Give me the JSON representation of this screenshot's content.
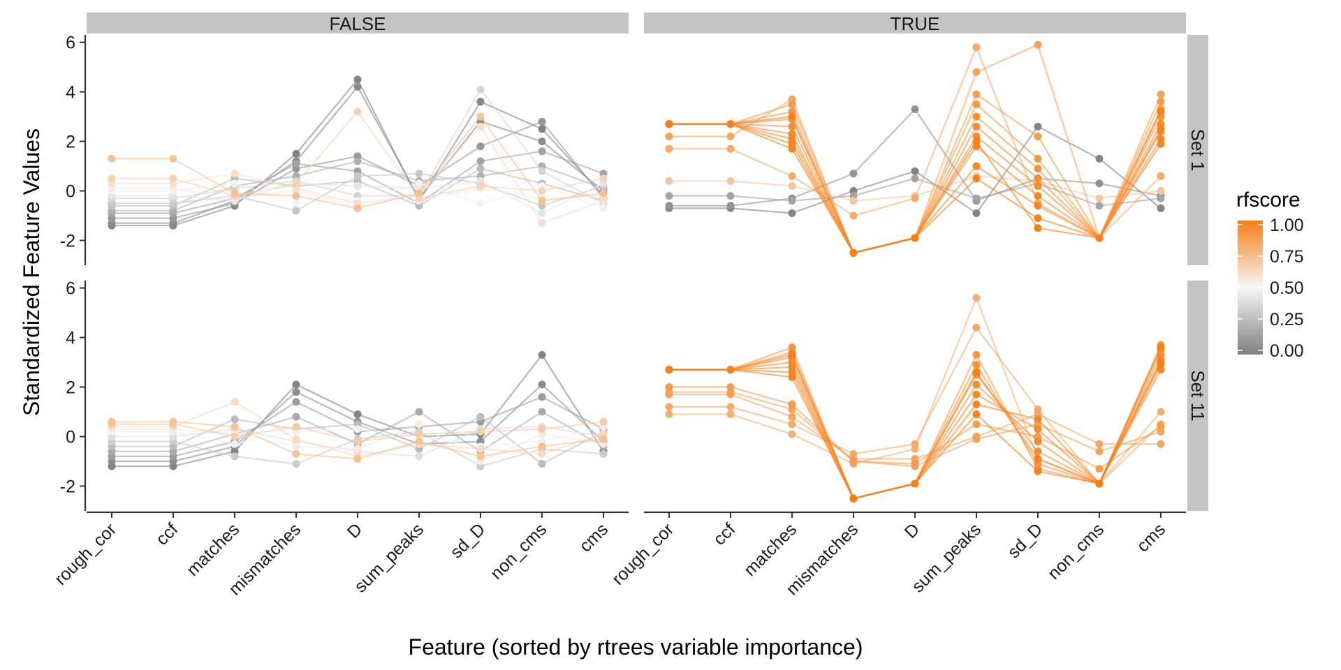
{
  "chart_data": {
    "type": "line",
    "y_axis_label": "Standardized Feature Values",
    "x_axis_label": "Feature (sorted by rtrees variable importance)",
    "x_categories": [
      "rough_cor",
      "ccf",
      "matches",
      "mismatches",
      "D",
      "sum_peaks",
      "sd_D",
      "non_cms",
      "cms"
    ],
    "y_ticks": [
      6,
      4,
      2,
      0,
      -2
    ],
    "y_tick_labels": [
      "6",
      "4",
      "2",
      "0",
      "-2"
    ],
    "ylim": [
      -3,
      6.3
    ],
    "column_facets": [
      "FALSE",
      "TRUE"
    ],
    "row_facets": [
      "Set 1",
      "Set 11"
    ],
    "legend": {
      "title": "rfscore",
      "ticks": [
        1.0,
        0.75,
        0.5,
        0.25,
        0.0
      ],
      "tick_labels": [
        "1.00",
        "0.75",
        "0.50",
        "0.25",
        "0.00"
      ],
      "color_low": "#7f7f7f",
      "color_mid": "#f7f7f7",
      "color_high": "#f57f17"
    },
    "panels": [
      {
        "column": "FALSE",
        "row": "Set 1",
        "series": [
          {
            "rfscore": 0.02,
            "values": [
              -1.4,
              -1.4,
              -0.6,
              1.5,
              4.5,
              -0.4,
              3.6,
              2.5,
              -0.2
            ]
          },
          {
            "rfscore": 0.05,
            "values": [
              -1.3,
              -1.3,
              -0.4,
              1.2,
              4.2,
              -0.3,
              2.8,
              2.0,
              0.0
            ]
          },
          {
            "rfscore": 0.1,
            "values": [
              -1.1,
              -1.1,
              -0.5,
              0.9,
              1.4,
              0.2,
              1.8,
              2.8,
              -0.3
            ]
          },
          {
            "rfscore": 0.15,
            "values": [
              -0.9,
              -0.9,
              -0.3,
              1.1,
              0.8,
              -0.5,
              1.2,
              1.6,
              0.7
            ]
          },
          {
            "rfscore": 0.2,
            "values": [
              -0.8,
              -0.8,
              0.2,
              0.6,
              1.2,
              0.4,
              0.6,
              1.0,
              0.1
            ]
          },
          {
            "rfscore": 0.25,
            "values": [
              -0.6,
              -0.6,
              0.5,
              0.2,
              0.4,
              -0.6,
              0.9,
              0.3,
              -0.4
            ]
          },
          {
            "rfscore": 0.3,
            "values": [
              -0.5,
              -0.5,
              -0.2,
              -0.8,
              0.6,
              0.7,
              0.3,
              -0.6,
              0.2
            ]
          },
          {
            "rfscore": 0.35,
            "values": [
              -0.3,
              -0.3,
              0.1,
              0.4,
              -0.2,
              -0.2,
              4.1,
              0.8,
              -0.5
            ]
          },
          {
            "rfscore": 0.42,
            "values": [
              -0.2,
              -0.2,
              -0.4,
              0.3,
              0.2,
              0.1,
              0.4,
              -0.9,
              0.3
            ]
          },
          {
            "rfscore": 0.48,
            "values": [
              0.0,
              0.0,
              0.3,
              -0.5,
              -0.4,
              0.3,
              -0.5,
              0.2,
              -0.7
            ]
          },
          {
            "rfscore": 0.55,
            "values": [
              0.1,
              0.1,
              -0.3,
              0.0,
              -0.6,
              -0.4,
              0.1,
              -0.3,
              -0.2
            ]
          },
          {
            "rfscore": 0.6,
            "values": [
              0.3,
              0.3,
              0.7,
              0.1,
              -0.5,
              -0.2,
              2.6,
              -1.3,
              -0.4
            ]
          },
          {
            "rfscore": 0.65,
            "values": [
              0.5,
              0.5,
              -0.2,
              0.3,
              3.2,
              -0.3,
              0.2,
              0.0,
              0.5
            ]
          },
          {
            "rfscore": 0.72,
            "values": [
              1.3,
              1.3,
              -0.1,
              -0.2,
              -0.7,
              -0.1,
              3.0,
              -0.4,
              -0.1
            ]
          }
        ]
      },
      {
        "column": "TRUE",
        "row": "Set 1",
        "series": [
          {
            "rfscore": 0.02,
            "values": [
              -0.7,
              -0.7,
              -0.9,
              0.0,
              0.8,
              -0.9,
              2.6,
              1.3,
              -0.7
            ]
          },
          {
            "rfscore": 0.08,
            "values": [
              -0.6,
              -0.6,
              -0.3,
              0.7,
              3.3,
              -0.4,
              0.5,
              0.3,
              -0.2
            ]
          },
          {
            "rfscore": 0.15,
            "values": [
              -0.2,
              -0.2,
              -0.4,
              -0.2,
              0.5,
              -0.3,
              0.3,
              -0.6,
              -0.3
            ]
          },
          {
            "rfscore": 0.7,
            "values": [
              0.4,
              0.4,
              0.2,
              -0.4,
              -0.2,
              0.6,
              0.4,
              -0.3,
              0.0
            ]
          },
          {
            "rfscore": 0.82,
            "values": [
              1.7,
              1.7,
              0.6,
              -1.0,
              -0.3,
              5.8,
              -0.5,
              -1.9,
              0.6
            ]
          },
          {
            "rfscore": 0.85,
            "values": [
              2.2,
              2.2,
              3.7,
              -2.5,
              -1.9,
              4.8,
              5.9,
              -1.9,
              3.9
            ]
          },
          {
            "rfscore": 0.88,
            "values": [
              2.7,
              2.7,
              3.5,
              -2.5,
              -1.9,
              3.9,
              2.2,
              -1.9,
              3.6
            ]
          },
          {
            "rfscore": 0.9,
            "values": [
              2.7,
              2.7,
              3.2,
              -2.5,
              -1.9,
              3.5,
              1.3,
              -1.9,
              3.3
            ]
          },
          {
            "rfscore": 0.92,
            "values": [
              2.7,
              2.7,
              2.9,
              -2.5,
              -1.9,
              3.0,
              0.9,
              -1.9,
              3.0
            ]
          },
          {
            "rfscore": 0.94,
            "values": [
              2.7,
              2.7,
              2.6,
              -2.5,
              -1.9,
              2.6,
              0.5,
              -1.9,
              2.7
            ]
          },
          {
            "rfscore": 0.95,
            "values": [
              2.7,
              2.7,
              2.3,
              -2.5,
              -1.9,
              2.2,
              0.2,
              -1.9,
              2.4
            ]
          },
          {
            "rfscore": 0.96,
            "values": [
              2.7,
              2.7,
              2.1,
              -2.5,
              -1.9,
              1.8,
              -0.2,
              -1.9,
              2.1
            ]
          },
          {
            "rfscore": 0.97,
            "values": [
              2.7,
              2.7,
              1.9,
              -2.5,
              -1.9,
              1.0,
              -0.6,
              -1.9,
              1.9
            ]
          },
          {
            "rfscore": 0.98,
            "values": [
              2.7,
              2.7,
              1.7,
              -2.5,
              -1.9,
              0.5,
              -1.1,
              -1.9,
              2.5
            ]
          },
          {
            "rfscore": 0.99,
            "values": [
              2.7,
              2.7,
              3.0,
              -2.5,
              -1.9,
              2.0,
              -1.5,
              -1.9,
              3.2
            ]
          }
        ]
      },
      {
        "column": "FALSE",
        "row": "Set 11",
        "series": [
          {
            "rfscore": 0.02,
            "values": [
              -1.2,
              -1.2,
              -0.6,
              2.1,
              0.9,
              0.0,
              0.1,
              3.3,
              -0.6
            ]
          },
          {
            "rfscore": 0.06,
            "values": [
              -1.0,
              -1.0,
              -0.4,
              1.8,
              0.6,
              -0.3,
              -0.2,
              2.1,
              -0.2
            ]
          },
          {
            "rfscore": 0.12,
            "values": [
              -0.8,
              -0.8,
              -0.2,
              1.4,
              0.2,
              0.4,
              0.6,
              1.6,
              0.3
            ]
          },
          {
            "rfscore": 0.18,
            "values": [
              -0.6,
              -0.6,
              0.1,
              0.8,
              -0.3,
              1.0,
              -0.6,
              1.0,
              -0.4
            ]
          },
          {
            "rfscore": 0.25,
            "values": [
              -0.4,
              -0.4,
              0.7,
              0.3,
              0.5,
              -0.5,
              0.8,
              -1.1,
              0.2
            ]
          },
          {
            "rfscore": 0.32,
            "values": [
              -0.2,
              -0.2,
              -0.8,
              -1.1,
              -0.1,
              0.2,
              -1.2,
              -0.5,
              -0.7
            ]
          },
          {
            "rfscore": 0.4,
            "values": [
              0.0,
              0.0,
              0.3,
              -0.2,
              -0.6,
              -0.8,
              0.3,
              0.4,
              0.0
            ]
          },
          {
            "rfscore": 0.47,
            "values": [
              0.2,
              0.2,
              -0.3,
              0.2,
              0.3,
              0.0,
              -0.4,
              -0.2,
              0.4
            ]
          },
          {
            "rfscore": 0.55,
            "values": [
              0.3,
              0.3,
              0.1,
              -0.4,
              -0.5,
              0.5,
              -1.0,
              0.1,
              -0.3
            ]
          },
          {
            "rfscore": 0.62,
            "values": [
              0.4,
              0.4,
              1.4,
              -0.1,
              -0.8,
              -0.3,
              -0.5,
              -0.7,
              0.1
            ]
          },
          {
            "rfscore": 0.68,
            "values": [
              0.5,
              0.5,
              0.0,
              0.4,
              -0.2,
              0.1,
              0.2,
              0.3,
              0.6
            ]
          },
          {
            "rfscore": 0.72,
            "values": [
              0.6,
              0.6,
              0.4,
              -0.7,
              -0.9,
              -0.2,
              -0.8,
              -0.4,
              -0.1
            ]
          }
        ]
      },
      {
        "column": "TRUE",
        "row": "Set 11",
        "series": [
          {
            "rfscore": 0.8,
            "values": [
              0.9,
              0.9,
              0.1,
              -1.1,
              -0.5,
              5.6,
              -0.9,
              -1.9,
              1.0
            ]
          },
          {
            "rfscore": 0.82,
            "values": [
              1.2,
              1.2,
              0.5,
              -0.7,
              -0.3,
              4.4,
              1.1,
              -1.9,
              0.5
            ]
          },
          {
            "rfscore": 0.84,
            "values": [
              1.7,
              1.7,
              0.8,
              -0.9,
              -0.9,
              0.0,
              0.9,
              -0.3,
              -0.3
            ]
          },
          {
            "rfscore": 0.86,
            "values": [
              1.8,
              1.8,
              1.1,
              -1.0,
              -1.2,
              -0.1,
              0.5,
              -0.6,
              0.2
            ]
          },
          {
            "rfscore": 0.88,
            "values": [
              2.0,
              2.0,
              1.3,
              -1.0,
              -1.1,
              0.5,
              0.0,
              -1.3,
              0.4
            ]
          },
          {
            "rfscore": 0.9,
            "values": [
              2.7,
              2.7,
              3.6,
              -2.5,
              -1.9,
              3.3,
              -1.3,
              -1.9,
              3.7
            ]
          },
          {
            "rfscore": 0.92,
            "values": [
              2.7,
              2.7,
              3.4,
              -2.5,
              -1.9,
              2.9,
              -1.1,
              -1.9,
              3.5
            ]
          },
          {
            "rfscore": 0.94,
            "values": [
              2.7,
              2.7,
              3.2,
              -2.5,
              -1.9,
              2.5,
              -0.6,
              -1.9,
              3.3
            ]
          },
          {
            "rfscore": 0.95,
            "values": [
              2.7,
              2.7,
              3.0,
              -2.5,
              -1.9,
              2.1,
              -0.2,
              -1.9,
              3.1
            ]
          },
          {
            "rfscore": 0.96,
            "values": [
              2.7,
              2.7,
              2.8,
              -2.5,
              -1.9,
              1.7,
              0.3,
              -1.9,
              2.9
            ]
          },
          {
            "rfscore": 0.97,
            "values": [
              2.7,
              2.7,
              2.6,
              -2.5,
              -1.9,
              1.3,
              0.7,
              -1.9,
              2.7
            ]
          },
          {
            "rfscore": 0.98,
            "values": [
              2.7,
              2.7,
              2.4,
              -2.5,
              -1.9,
              0.9,
              -1.4,
              -1.9,
              3.0
            ]
          },
          {
            "rfscore": 0.99,
            "values": [
              2.7,
              2.7,
              3.3,
              -2.5,
              -1.9,
              2.6,
              -0.9,
              -1.9,
              3.6
            ]
          }
        ]
      }
    ]
  }
}
